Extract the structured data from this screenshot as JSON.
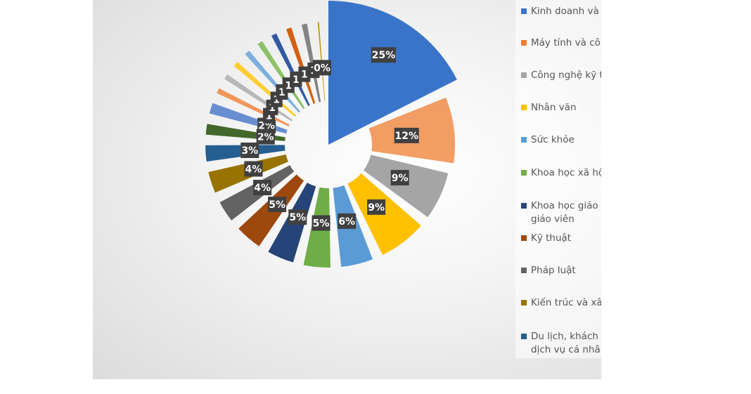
{
  "chart_data": {
    "type": "pie",
    "style": "exploded-radial",
    "legend_position": "right",
    "labels": [
      "Kinh doanh và quản lý",
      "Máy tính và công nghệ thông tin",
      "Công nghệ kỹ thuật",
      "Nhân văn",
      "Sức khỏe",
      "Khoa học xã hội và hành vi",
      "Khoa học giáo dục và đào tạo giáo viên",
      "Kỹ thuật",
      "Pháp luật",
      "Kiến trúc và xây dựng",
      "Du lịch, khách sạn, thể thao và dịch vụ cá nhân",
      "",
      "",
      "",
      "",
      "",
      "",
      "",
      "",
      "",
      "",
      ""
    ],
    "values": [
      25,
      12,
      9,
      9,
      6,
      5,
      5,
      5,
      4,
      4,
      3,
      2,
      2,
      1,
      1,
      1,
      1,
      1,
      1,
      1,
      1,
      0
    ],
    "data_labels": [
      "25%",
      "12%",
      "9%",
      "9%",
      "6%",
      "5%",
      "5%",
      "5%",
      "4%",
      "4%",
      "3%",
      "2%",
      "2%",
      "1",
      "1",
      "1",
      "1",
      "1",
      "1",
      "1",
      "1",
      "0%"
    ],
    "colors": [
      "#3a74c8",
      "#ed7d31",
      "#a5a5a5",
      "#ffc000",
      "#5b9bd5",
      "#70ad47",
      "#264478",
      "#9e480e",
      "#636363",
      "#997300",
      "#255e91",
      "#43682b",
      "#698ed0",
      "#f1975a",
      "#b7b7b7",
      "#ffcd33",
      "#7cafdd",
      "#8cc168",
      "#335aa1",
      "#d26012",
      "#848484",
      "#c09200"
    ]
  }
}
